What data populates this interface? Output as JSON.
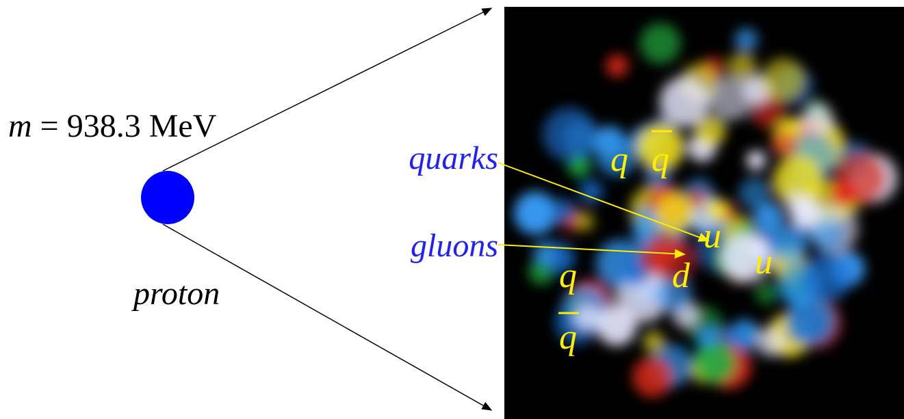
{
  "mass": {
    "symbol": "m",
    "text": "= 938.3 MeV"
  },
  "particle": "proton",
  "pointers": [
    {
      "label": "quarks"
    },
    {
      "label": "gluons"
    }
  ],
  "image_labels": [
    "q",
    "q",
    "u",
    "d",
    "u",
    "q",
    "q"
  ]
}
